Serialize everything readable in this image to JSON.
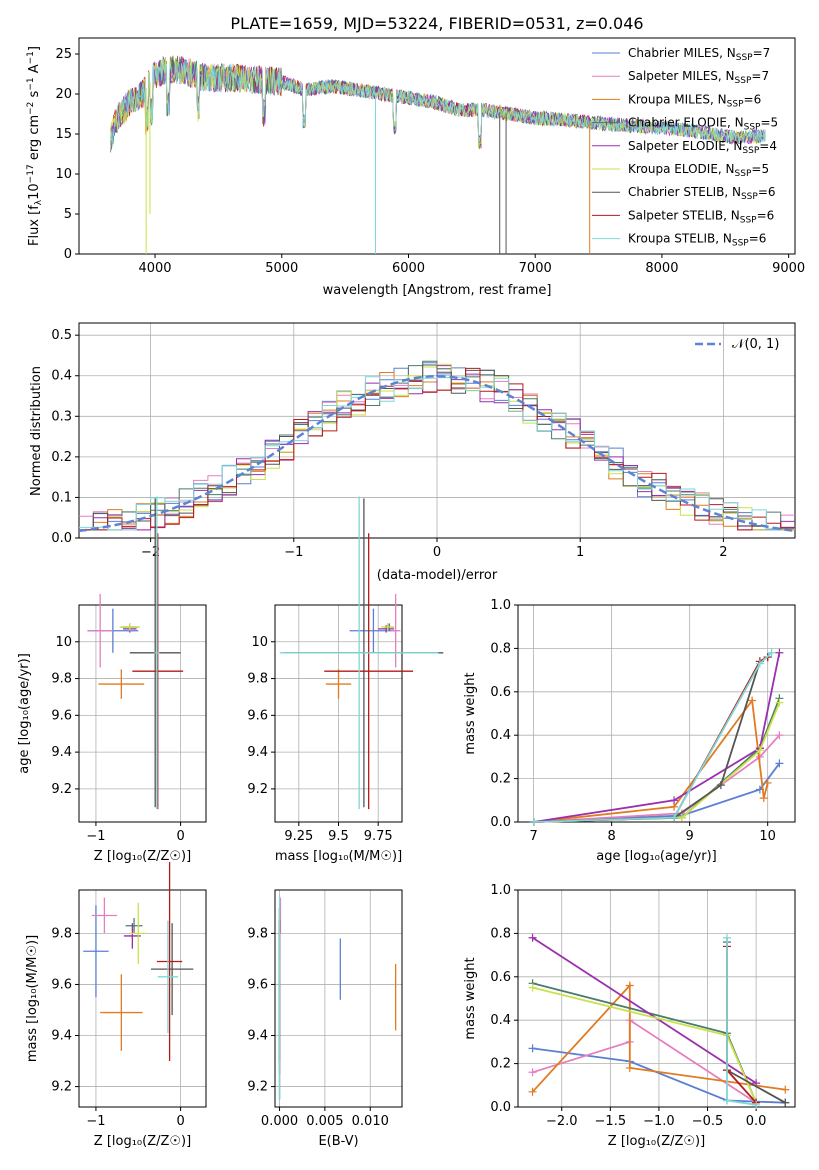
{
  "title": "PLATE=1659, MJD=53224, FIBERID=0531, z=0.046",
  "colors": [
    "#5a7fd4",
    "#e57fc0",
    "#e07b20",
    "#4b7b6a",
    "#9b2fae",
    "#c9e24a",
    "#555555",
    "#b31b1b",
    "#7fd6d6"
  ],
  "models": [
    {
      "label": "Chabrier MILES, N",
      "sub": "SSP",
      "tail": "=7"
    },
    {
      "label": "Salpeter MILES, N",
      "sub": "SSP",
      "tail": "=7"
    },
    {
      "label": "Kroupa MILES, N",
      "sub": "SSP",
      "tail": "=6"
    },
    {
      "label": "Chabrier ELODIE, N",
      "sub": "SSP",
      "tail": "=5"
    },
    {
      "label": "Salpeter ELODIE, N",
      "sub": "SSP",
      "tail": "=4"
    },
    {
      "label": "Kroupa ELODIE, N",
      "sub": "SSP",
      "tail": "=5"
    },
    {
      "label": "Chabrier STELIB, N",
      "sub": "SSP",
      "tail": "=6"
    },
    {
      "label": "Salpeter STELIB, N",
      "sub": "SSP",
      "tail": "=6"
    },
    {
      "label": "Kroupa STELIB, N",
      "sub": "SSP",
      "tail": "=6"
    }
  ],
  "chart_data": [
    {
      "id": "spectrum",
      "type": "line",
      "title": "PLATE=1659, MJD=53224, FIBERID=0531, z=0.046",
      "xlabel": "wavelength [Angstrom, rest frame]",
      "ylabel": "Flux [f",
      "ylabel_parts": [
        "Flux [f",
        "λ",
        "10",
        "−17",
        " erg cm",
        "−2",
        " s",
        "−1",
        " A",
        "−1",
        "]"
      ],
      "xlim": [
        3400,
        9050
      ],
      "ylim": [
        0,
        27
      ],
      "xticks": [
        4000,
        5000,
        6000,
        7000,
        8000,
        9000
      ],
      "yticks": [
        0,
        5,
        10,
        15,
        20,
        25
      ],
      "continuum_x": [
        3650,
        3700,
        3800,
        3900,
        4000,
        4100,
        4200,
        4300,
        4400,
        4500,
        4600,
        4800,
        5000,
        5200,
        5400,
        5600,
        5800,
        6000,
        6200,
        6400,
        6600,
        6800,
        7000,
        7200,
        7400,
        7600,
        7800,
        8000,
        8200,
        8400,
        8600,
        8800
      ],
      "continuum_y": [
        14.5,
        17.0,
        19.0,
        20.0,
        22.5,
        23.0,
        23.0,
        22.5,
        22.0,
        22.0,
        22.0,
        21.8,
        21.5,
        20.5,
        21.0,
        20.5,
        20.0,
        19.5,
        19.0,
        18.0,
        18.0,
        17.5,
        17.0,
        16.8,
        16.5,
        16.2,
        16.0,
        15.8,
        15.5,
        15.0,
        14.5,
        14.8
      ]
    },
    {
      "id": "residuals",
      "type": "step",
      "xlabel": "(data-model)/error",
      "ylabel": "Normed distribution",
      "xlim": [
        -2.5,
        2.5
      ],
      "ylim": [
        0,
        0.53
      ],
      "xticks": [
        -2,
        -1,
        0,
        1,
        2
      ],
      "yticks": [
        0.0,
        0.1,
        0.2,
        0.3,
        0.4,
        0.5
      ],
      "legend": "𝒩(0, 1)",
      "legend_loc": "top-right",
      "grid": true
    },
    {
      "id": "age_vs_Z",
      "type": "scatter",
      "xlabel": "Z [log10(Z/Z☉)]",
      "ylabel": "age [log10(age/yr)]",
      "xlim": [
        -1.2,
        0.3
      ],
      "ylim": [
        9.02,
        10.2
      ],
      "xticks": [
        -1,
        0
      ],
      "yticks": [
        9.2,
        9.4,
        9.6,
        9.8,
        10.0
      ],
      "points": [
        {
          "x": -0.8,
          "y": 10.06,
          "xerr": 0.3,
          "yerr": 0.12
        },
        {
          "x": -0.95,
          "y": 10.06,
          "xerr": 0.15,
          "yerr": 0.2
        },
        {
          "x": -0.7,
          "y": 9.77,
          "xerr": 0.27,
          "yerr": 0.08
        },
        {
          "x": -0.6,
          "y": 10.08,
          "xerr": 0.1,
          "yerr": 0.02
        },
        {
          "x": -0.6,
          "y": 10.07,
          "xerr": 0.08,
          "yerr": 0.02
        },
        {
          "x": -0.6,
          "y": 10.08,
          "xerr": 0.12,
          "yerr": 0.02
        },
        {
          "x": -0.3,
          "y": 9.94,
          "xerr": 0.3,
          "yerr": 0.84
        },
        {
          "x": -0.27,
          "y": 9.84,
          "xerr": 0.3,
          "yerr": 0.75
        },
        {
          "x": -0.28,
          "y": 9.94,
          "xerr": 0.03,
          "yerr": 0.85
        }
      ]
    },
    {
      "id": "age_vs_mass",
      "type": "scatter",
      "xlabel": "mass [log10(M/M☉)]",
      "ylabel": "",
      "xlim": [
        9.1,
        9.9
      ],
      "ylim": [
        9.02,
        10.2
      ],
      "xticks": [
        9.25,
        9.5,
        9.75
      ],
      "yticks": [
        9.2,
        9.4,
        9.6,
        9.8,
        10.0
      ],
      "points": [
        {
          "x": 9.72,
          "y": 10.06,
          "xerr": 0.15,
          "yerr": 0.12
        },
        {
          "x": 9.86,
          "y": 10.06,
          "xerr": 0.03,
          "yerr": 0.2
        },
        {
          "x": 9.5,
          "y": 9.77,
          "xerr": 0.08,
          "yerr": 0.08
        },
        {
          "x": 9.82,
          "y": 10.08,
          "xerr": 0.03,
          "yerr": 0.02
        },
        {
          "x": 9.8,
          "y": 10.07,
          "xerr": 0.05,
          "yerr": 0.02
        },
        {
          "x": 9.81,
          "y": 10.08,
          "xerr": 0.04,
          "yerr": 0.02
        },
        {
          "x": 9.66,
          "y": 9.94,
          "xerr": 0.5,
          "yerr": 0.84
        },
        {
          "x": 9.69,
          "y": 9.84,
          "xerr": 0.28,
          "yerr": 0.75
        },
        {
          "x": 9.63,
          "y": 9.94,
          "xerr": 0.5,
          "yerr": 0.85
        }
      ]
    },
    {
      "id": "weight_vs_age",
      "type": "line",
      "xlabel": "age [log10(age/yr)]",
      "ylabel": "mass weight",
      "xlim": [
        6.8,
        10.35
      ],
      "ylim": [
        0,
        1.0
      ],
      "xticks": [
        7,
        8,
        9,
        10
      ],
      "yticks": [
        0.0,
        0.2,
        0.4,
        0.6,
        0.8,
        1.0
      ],
      "series": [
        {
          "x": [
            7.0,
            8.9,
            9.9,
            10.15
          ],
          "y": [
            0.0,
            0.03,
            0.15,
            0.27
          ]
        },
        {
          "x": [
            7.0,
            8.9,
            9.9,
            10.15
          ],
          "y": [
            0.0,
            0.04,
            0.3,
            0.4
          ]
        },
        {
          "x": [
            7.0,
            8.8,
            9.8,
            9.95,
            10.0
          ],
          "y": [
            0.0,
            0.07,
            0.56,
            0.11,
            0.18
          ]
        },
        {
          "x": [
            7.0,
            8.9,
            9.9,
            10.15
          ],
          "y": [
            0.0,
            0.02,
            0.34,
            0.57
          ]
        },
        {
          "x": [
            7.0,
            8.8,
            9.9,
            10.15
          ],
          "y": [
            0.0,
            0.1,
            0.34,
            0.78
          ]
        },
        {
          "x": [
            7.0,
            8.9,
            9.9,
            10.15
          ],
          "y": [
            0.0,
            0.02,
            0.33,
            0.55
          ]
        },
        {
          "x": [
            7.0,
            8.8,
            9.4,
            9.9,
            10.0
          ],
          "y": [
            0.0,
            0.02,
            0.17,
            0.74,
            0.76
          ]
        },
        {
          "x": [
            7.0,
            8.8,
            9.9,
            10.0
          ],
          "y": [
            0.0,
            0.02,
            0.74,
            0.76
          ]
        },
        {
          "x": [
            7.0,
            8.8,
            9.9,
            10.05
          ],
          "y": [
            0.0,
            0.02,
            0.73,
            0.78
          ]
        }
      ]
    },
    {
      "id": "mass_vs_Z",
      "type": "scatter",
      "xlabel": "Z [log10(Z/Z☉)]",
      "ylabel": "mass [log10(M/M☉)]",
      "xlim": [
        -1.2,
        0.3
      ],
      "ylim": [
        9.12,
        9.97
      ],
      "xticks": [
        -1,
        0
      ],
      "yticks": [
        9.2,
        9.4,
        9.6,
        9.8
      ],
      "points": [
        {
          "x": -1.0,
          "y": 9.73,
          "xerr": 0.15,
          "yerr": 0.18
        },
        {
          "x": -0.9,
          "y": 9.87,
          "xerr": 0.15,
          "yerr": 0.07
        },
        {
          "x": -0.7,
          "y": 9.49,
          "xerr": 0.25,
          "yerr": 0.15
        },
        {
          "x": -0.55,
          "y": 9.83,
          "xerr": 0.1,
          "yerr": 0.03
        },
        {
          "x": -0.57,
          "y": 9.79,
          "xerr": 0.1,
          "yerr": 0.05
        },
        {
          "x": -0.5,
          "y": 9.8,
          "xerr": 0.1,
          "yerr": 0.12
        },
        {
          "x": -0.1,
          "y": 9.66,
          "xerr": 0.25,
          "yerr": 0.18
        },
        {
          "x": -0.13,
          "y": 9.69,
          "xerr": 0.15,
          "yerr": 0.39
        },
        {
          "x": -0.15,
          "y": 9.63,
          "xerr": 0.12,
          "yerr": 0.22
        }
      ]
    },
    {
      "id": "mass_vs_ebv",
      "type": "scatter",
      "xlabel": "E(B-V)",
      "ylabel": "",
      "xlim": [
        -0.0005,
        0.0135
      ],
      "ylim": [
        9.12,
        9.97
      ],
      "xticks": [
        0.0,
        0.005,
        0.01
      ],
      "xticklabels": [
        "0.000",
        "0.005",
        "0.010"
      ],
      "yticks": [
        9.2,
        9.4,
        9.6,
        9.8
      ],
      "points": [
        {
          "x": 0.0067,
          "y": 9.66,
          "xerr": 0,
          "yerr": 0.12
        },
        {
          "x": 0.0001,
          "y": 9.87,
          "xerr": 0,
          "yerr": 0.07
        },
        {
          "x": 0.0128,
          "y": 9.55,
          "xerr": 0,
          "yerr": 0.13
        },
        {
          "x": 0.0,
          "y": 9.6,
          "xerr": 0,
          "yerr": 0.3
        },
        {
          "x": 0.0,
          "y": 9.8,
          "xerr": 0,
          "yerr": 0.1
        },
        {
          "x": 0.0,
          "y": 9.75,
          "xerr": 0,
          "yerr": 0.15
        },
        {
          "x": 0.0,
          "y": 9.5,
          "xerr": 0,
          "yerr": 0.35
        },
        {
          "x": 0.0,
          "y": 9.55,
          "xerr": 0,
          "yerr": 0.3
        },
        {
          "x": 0.0,
          "y": 9.55,
          "xerr": 0,
          "yerr": 0.4
        }
      ]
    },
    {
      "id": "weight_vs_Z",
      "type": "line",
      "xlabel": "Z [log10(Z/Z☉)]",
      "ylabel": "mass weight",
      "xlim": [
        -2.45,
        0.4
      ],
      "ylim": [
        0,
        1.0
      ],
      "xticks": [
        -2.0,
        -1.5,
        -1.0,
        -0.5,
        0.0
      ],
      "xticklabels": [
        "−2.0",
        "−1.5",
        "−1.0",
        "−0.5",
        "0.0"
      ],
      "yticks": [
        0.0,
        0.2,
        0.4,
        0.6,
        0.8,
        1.0
      ],
      "series": [
        {
          "x": [
            -2.3,
            -1.3,
            -0.3,
            0.3
          ],
          "y": [
            0.27,
            0.21,
            0.03,
            0.02
          ]
        },
        {
          "x": [
            -2.3,
            -1.3,
            -1.3,
            0.0
          ],
          "y": [
            0.16,
            0.3,
            0.4,
            0.02
          ]
        },
        {
          "x": [
            -2.3,
            -1.3,
            -1.3,
            0.3
          ],
          "y": [
            0.07,
            0.56,
            0.18,
            0.08
          ]
        },
        {
          "x": [
            -2.3,
            -0.3,
            0.0
          ],
          "y": [
            0.57,
            0.34,
            0.02
          ]
        },
        {
          "x": [
            -2.3,
            0.0
          ],
          "y": [
            0.78,
            0.11
          ]
        },
        {
          "x": [
            -2.3,
            -0.3,
            0.0
          ],
          "y": [
            0.55,
            0.33,
            0.02
          ]
        },
        {
          "x": [
            -0.3,
            -0.3,
            0.3
          ],
          "y": [
            0.76,
            0.17,
            0.02
          ]
        },
        {
          "x": [
            -0.3,
            -0.3,
            0.0
          ],
          "y": [
            0.74,
            0.17,
            0.02
          ]
        },
        {
          "x": [
            -0.3,
            -0.3,
            0.0
          ],
          "y": [
            0.78,
            0.03,
            0.01
          ]
        }
      ]
    }
  ]
}
